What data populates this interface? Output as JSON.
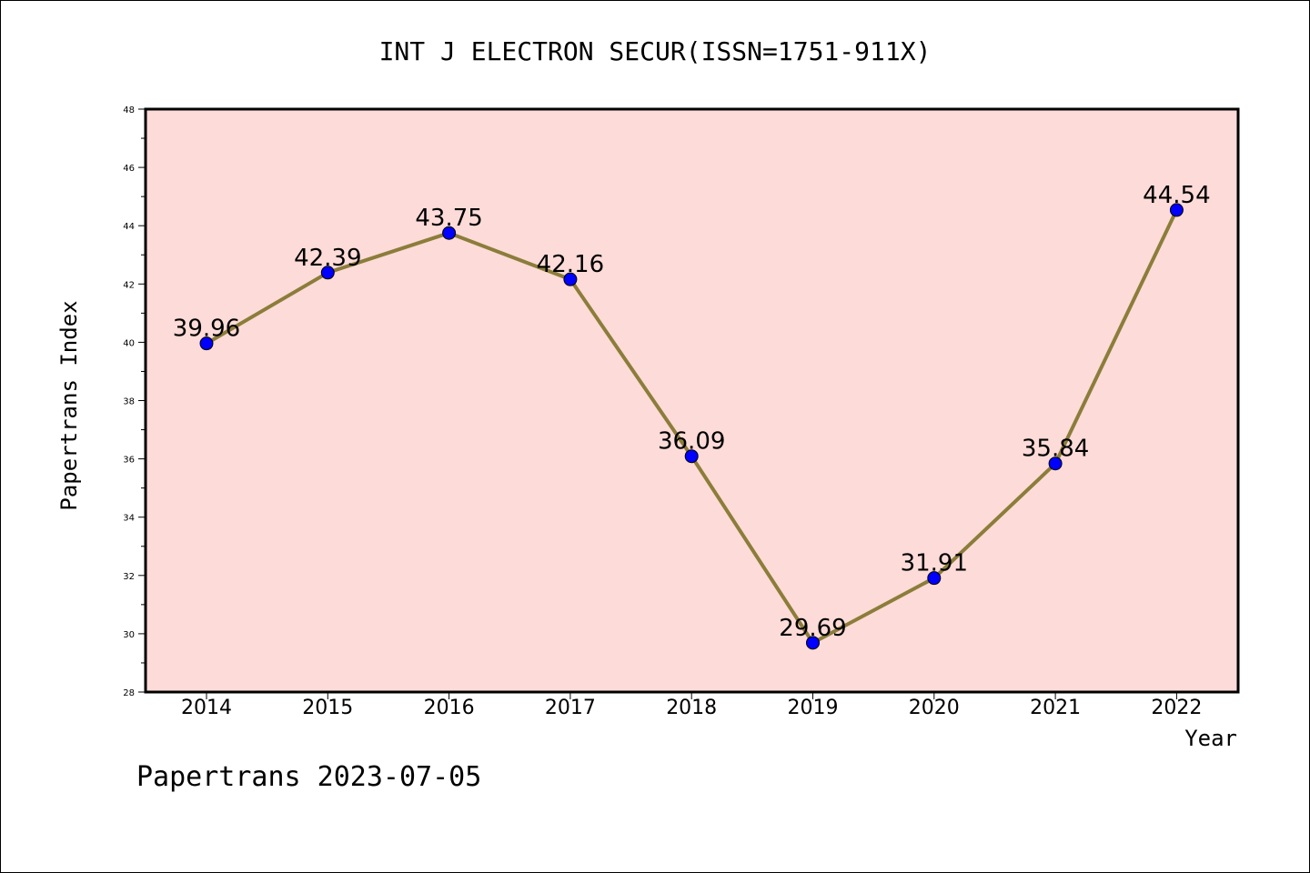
{
  "chart_data": {
    "type": "line",
    "title": "INT J ELECTRON SECUR(ISSN=1751-911X)",
    "xlabel": "Year",
    "ylabel": "Papertrans Index",
    "categories": [
      "2014",
      "2015",
      "2016",
      "2017",
      "2018",
      "2019",
      "2020",
      "2021",
      "2022"
    ],
    "series": [
      {
        "name": "Papertrans Index",
        "values": [
          39.96,
          42.39,
          43.75,
          42.16,
          36.09,
          29.69,
          31.91,
          35.84,
          44.54
        ],
        "labels": [
          "39.96",
          "42.39",
          "43.75",
          "42.16",
          "36.09",
          "29.69",
          "31.91",
          "35.84",
          "44.54"
        ]
      }
    ],
    "ylim": [
      28,
      48
    ],
    "yticks": [
      "28",
      "30",
      "32",
      "34",
      "36",
      "38",
      "40",
      "42",
      "44",
      "46",
      "48"
    ],
    "grid": false,
    "legend": "none"
  },
  "footer": {
    "watermark": "Papertrans 2023-07-05"
  },
  "colors": {
    "plot_background": "#FDDBD8",
    "line": "#8B7D3A",
    "marker": "#0000FF",
    "axis": "#000000"
  }
}
